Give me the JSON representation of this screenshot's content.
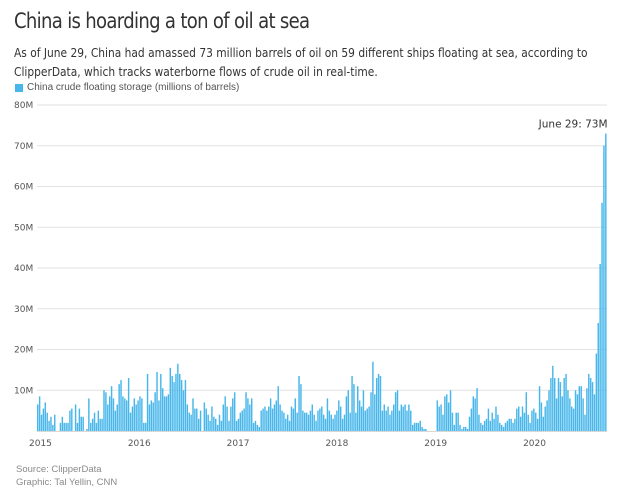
{
  "header": {
    "title": "China is hoarding a ton of oil at sea",
    "subtitle": "As of June 29, China had amassed 73 million barrels of oil on 59 different ships floating at sea, according to ClipperData, which tracks waterborne flows of crude oil in real-time."
  },
  "legend": {
    "label": "China crude floating storage (millions of barrels)",
    "color": "#47b6ea"
  },
  "footer": {
    "source": "Source: ClipperData",
    "credit": "Graphic: Tal Yellin, CNN"
  },
  "chart_data": {
    "type": "bar",
    "title": "China is hoarding a ton of oil at sea",
    "xlabel": "",
    "ylabel": "China crude floating storage (millions of barrels)",
    "ylim": [
      0,
      80
    ],
    "yticks": [
      0,
      10,
      20,
      30,
      40,
      50,
      60,
      70,
      80
    ],
    "ytick_labels": [
      "",
      "10M",
      "20M",
      "30M",
      "40M",
      "50M",
      "60M",
      "70M",
      "80M"
    ],
    "xticks": [
      "2015",
      "2016",
      "2017",
      "2018",
      "2019",
      "2020"
    ],
    "x_start": "2015-01",
    "x_end": "2020-06-29",
    "frequency": "weekly",
    "grid": true,
    "legend_position": "top-left",
    "bar_color": "#47b6ea",
    "annotation": {
      "label": "June 29: 73M",
      "value": 73
    },
    "values": [
      6.5,
      8.5,
      4,
      5.5,
      7,
      4.5,
      2.5,
      3.5,
      1.5,
      4,
      0,
      0,
      2,
      3.5,
      2,
      2,
      2,
      5,
      5.5,
      0,
      6.5,
      2,
      5.5,
      3.5,
      3.5,
      0,
      0.5,
      8,
      2,
      3,
      4.5,
      2,
      5,
      3,
      3,
      10,
      9.5,
      6.5,
      8.5,
      11,
      8,
      5,
      6.5,
      11.5,
      12.5,
      8.5,
      8,
      7.5,
      13,
      4.5,
      6,
      8,
      6.5,
      7.5,
      8.5,
      8,
      2,
      2,
      14,
      6.5,
      7.5,
      7,
      9.5,
      14.5,
      7.5,
      14,
      10.5,
      8.5,
      8.5,
      9,
      15.5,
      13.5,
      12,
      14,
      16.5,
      14,
      12.5,
      10,
      12.5,
      6.5,
      4.5,
      4,
      8,
      5.5,
      5.5,
      3,
      5,
      0,
      7,
      5.5,
      4,
      2.5,
      6,
      3.5,
      3,
      1.5,
      4,
      2.5,
      6.5,
      8.5,
      6,
      2.5,
      6,
      8,
      9.5,
      2.5,
      3,
      4.5,
      5,
      5.5,
      9.5,
      8,
      6.5,
      8,
      2,
      2.5,
      1.5,
      1,
      5,
      5.5,
      6,
      5,
      6,
      8,
      5.5,
      6.5,
      7.5,
      11,
      6.5,
      5,
      4.5,
      3,
      4,
      2.5,
      6,
      5.5,
      8,
      4.5,
      13.5,
      11.5,
      5,
      4.5,
      4.5,
      4,
      5,
      6.5,
      4,
      2.5,
      5,
      5.5,
      6,
      4,
      3,
      8,
      5,
      4,
      3,
      4,
      5,
      7.5,
      6,
      3,
      4,
      8.5,
      10,
      4.5,
      13.5,
      11.5,
      4.5,
      11,
      7.5,
      6,
      10,
      5,
      5.5,
      6,
      9.5,
      17,
      9,
      13,
      14,
      13.5,
      5,
      6.5,
      5,
      6,
      4,
      5,
      6.5,
      9.5,
      10,
      5,
      6.5,
      6,
      6.5,
      5,
      6.5,
      5,
      1.5,
      2,
      2,
      2,
      2.5,
      1,
      0.5,
      0.5,
      0,
      0,
      0,
      0,
      0,
      7.5,
      6,
      6.5,
      4,
      8.5,
      9,
      7,
      10,
      4.5,
      1.5,
      4.5,
      4.5,
      1.5,
      0.5,
      1,
      1,
      0.5,
      3.5,
      5.5,
      8.5,
      8,
      10.5,
      4,
      2,
      1.5,
      2.5,
      3,
      5.5,
      2.5,
      4.5,
      3,
      6,
      4,
      2,
      1.5,
      1,
      2,
      2.5,
      3,
      3,
      2,
      3,
      5.5,
      6,
      3.5,
      6,
      4.5,
      9.5,
      4,
      2,
      5,
      5.5,
      4.5,
      3,
      11,
      7,
      3.5,
      6,
      7.5,
      10,
      13,
      16,
      13,
      8,
      13,
      12,
      8.5,
      13,
      14,
      10,
      8,
      6,
      5.5,
      10,
      9,
      11,
      11,
      8,
      4,
      10.5,
      14,
      13,
      12,
      9,
      19,
      26.5,
      41,
      56,
      70,
      73
    ]
  }
}
